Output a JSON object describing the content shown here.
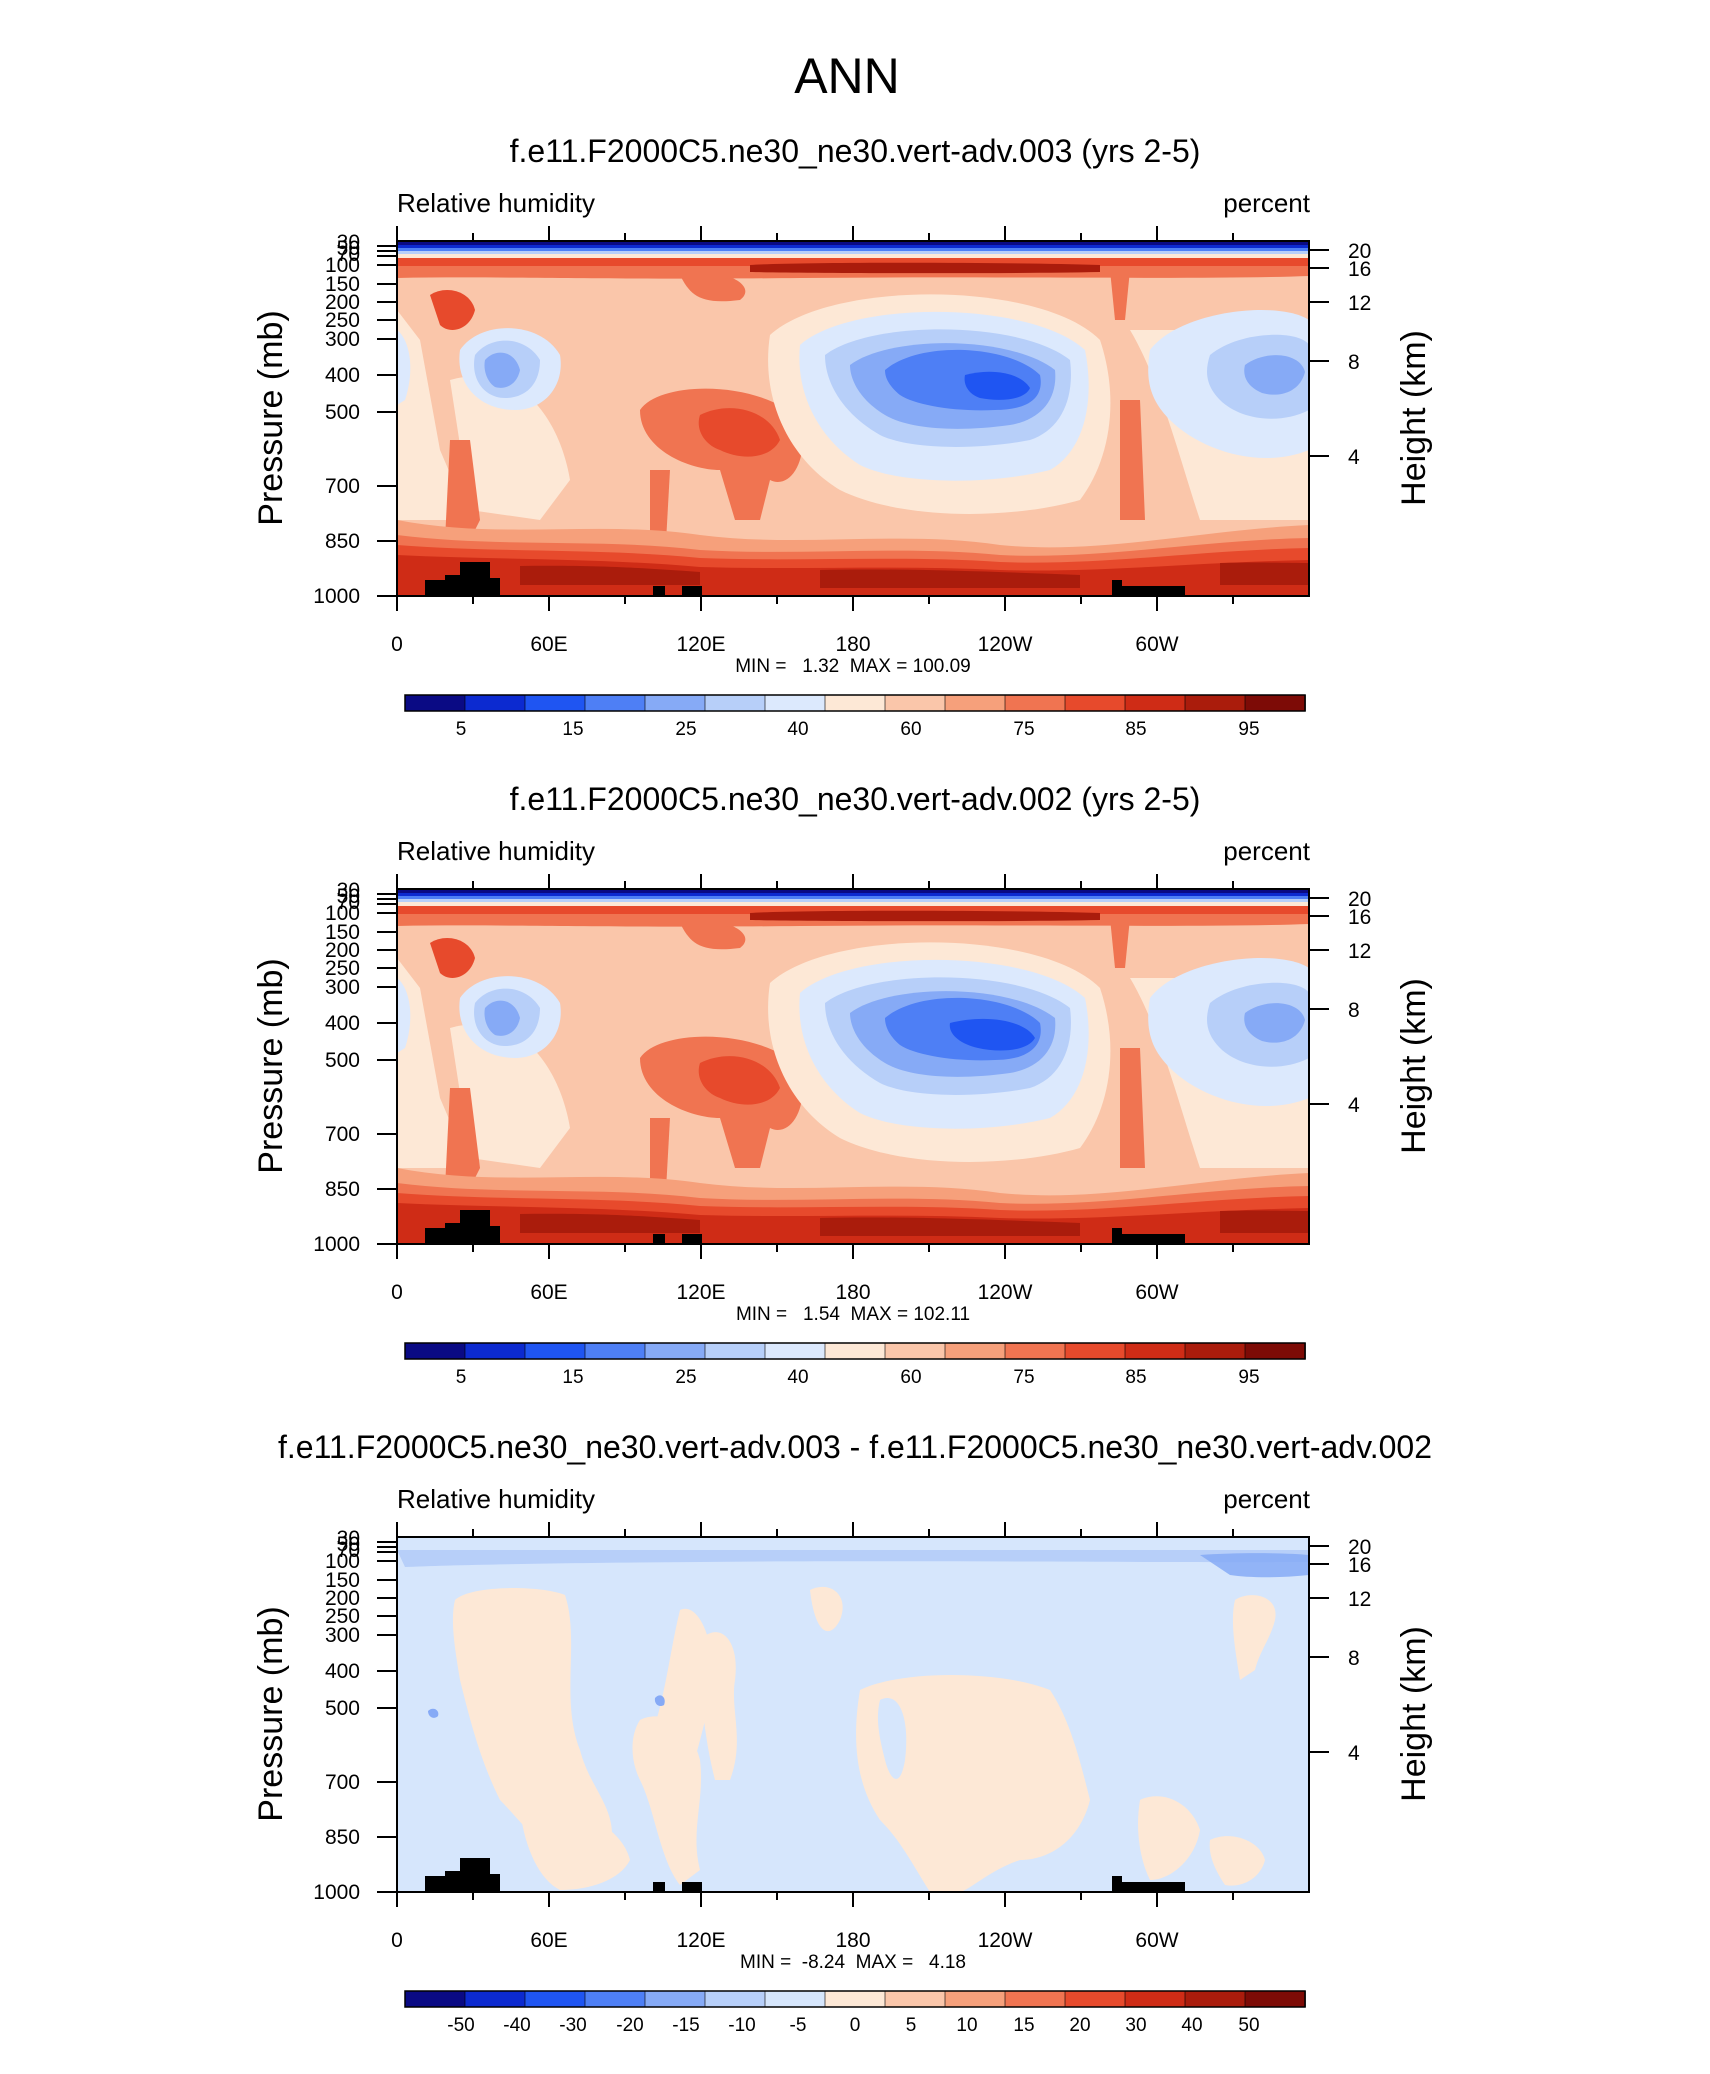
{
  "figure": {
    "title": "ANN"
  },
  "colors": {
    "abs": [
      "#0a0a84",
      "#0c2ad0",
      "#1f55f2",
      "#4e7ff5",
      "#86aaf6",
      "#b7cff9",
      "#dce9fd",
      "#fde8d6",
      "#fac6aa",
      "#f6a07b",
      "#f07451",
      "#e74a2c",
      "#cf2c16",
      "#aa1c0c",
      "#7d0b06"
    ],
    "diff": [
      "#0a0a84",
      "#0c2ad0",
      "#1f55f2",
      "#4e7ff5",
      "#86aaf6",
      "#b7cff9",
      "#d6e6fc",
      "#fde8d6",
      "#fac6aa",
      "#f6a07b",
      "#f07451",
      "#e74a2c",
      "#cf2c16",
      "#aa1c0c",
      "#7d0b06"
    ],
    "topography": "#000000"
  },
  "chart_data": [
    {
      "type": "heatmap",
      "title": "f.e11.F2000C5.ne30_ne30.vert-adv.003 (yrs 2-5)",
      "left_label": "Relative humidity",
      "right_label": "percent",
      "ylabel": "Pressure (mb)",
      "ylabel_right": "Height (km)",
      "x_ticks": [
        "0",
        "60E",
        "120E",
        "180",
        "120W",
        "60W"
      ],
      "y_ticks": [
        "30",
        "50",
        "70",
        "100",
        "150",
        "200",
        "250",
        "300",
        "400",
        "500",
        "700",
        "850",
        "1000"
      ],
      "y_ticks_right": [
        "20",
        "16",
        "12",
        "8",
        "4"
      ],
      "stats": "MIN =   1.32  MAX = 100.09",
      "colorbar": {
        "labels": [
          "5",
          "15",
          "25",
          "40",
          "60",
          "75",
          "85",
          "95"
        ]
      },
      "variant": "abs"
    },
    {
      "type": "heatmap",
      "title": "f.e11.F2000C5.ne30_ne30.vert-adv.002 (yrs 2-5)",
      "left_label": "Relative humidity",
      "right_label": "percent",
      "ylabel": "Pressure (mb)",
      "ylabel_right": "Height (km)",
      "x_ticks": [
        "0",
        "60E",
        "120E",
        "180",
        "120W",
        "60W"
      ],
      "y_ticks": [
        "30",
        "50",
        "70",
        "100",
        "150",
        "200",
        "250",
        "300",
        "400",
        "500",
        "700",
        "850",
        "1000"
      ],
      "y_ticks_right": [
        "20",
        "16",
        "12",
        "8",
        "4"
      ],
      "stats": "MIN =   1.54  MAX = 102.11",
      "colorbar": {
        "labels": [
          "5",
          "15",
          "25",
          "40",
          "60",
          "75",
          "85",
          "95"
        ]
      },
      "variant": "abs"
    },
    {
      "type": "heatmap",
      "title": "f.e11.F2000C5.ne30_ne30.vert-adv.003 - f.e11.F2000C5.ne30_ne30.vert-adv.002",
      "left_label": "Relative humidity",
      "right_label": "percent",
      "ylabel": "Pressure (mb)",
      "ylabel_right": "Height (km)",
      "x_ticks": [
        "0",
        "60E",
        "120E",
        "180",
        "120W",
        "60W"
      ],
      "y_ticks": [
        "30",
        "50",
        "70",
        "100",
        "150",
        "200",
        "250",
        "300",
        "400",
        "500",
        "700",
        "850",
        "1000"
      ],
      "y_ticks_right": [
        "20",
        "16",
        "12",
        "8",
        "4"
      ],
      "stats": "MIN =  -8.24  MAX =   4.18",
      "colorbar": {
        "labels": [
          "-50",
          "-40",
          "-30",
          "-20",
          "-15",
          "-10",
          "-5",
          "0",
          "5",
          "10",
          "15",
          "20",
          "30",
          "40",
          "50"
        ]
      },
      "variant": "diff"
    }
  ]
}
